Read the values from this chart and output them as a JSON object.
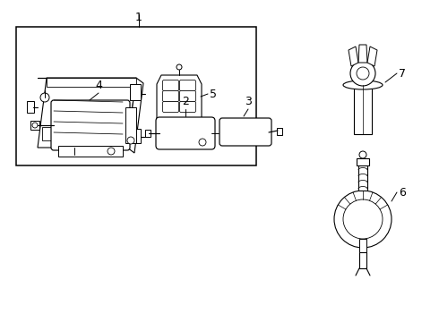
{
  "bg_color": "#ffffff",
  "line_color": "#000000",
  "figsize": [
    4.9,
    3.6
  ],
  "dpi": 100,
  "labels": {
    "1": "1",
    "2": "2",
    "3": "3",
    "4": "4",
    "5": "5",
    "6": "6",
    "7": "7"
  }
}
